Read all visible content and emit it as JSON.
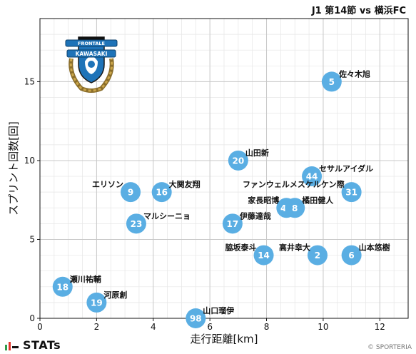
{
  "header": {
    "match_title": "J1 第14節 vs 横浜FC"
  },
  "footer": {
    "brand": "STATs",
    "copyright": "© SPORTERIA"
  },
  "crest": {
    "text_top": "FRONTALE",
    "text_main": "KAWASAKI"
  },
  "colors": {
    "point": "#5aaee3",
    "grid": "#c8c8c8",
    "text": "#111111"
  },
  "chart_data": {
    "type": "scatter",
    "xlabel": "走行距離[km]",
    "ylabel": "スプリント回数[回]",
    "xlim": [
      0,
      13
    ],
    "ylim": [
      0,
      19
    ],
    "xticks": [
      0,
      2,
      4,
      6,
      8,
      10,
      12
    ],
    "yticks": [
      0,
      5,
      10,
      15
    ],
    "grid": true,
    "points": [
      {
        "number": "5",
        "name": "佐々木旭",
        "x": 10.3,
        "y": 15,
        "label_side": "right"
      },
      {
        "number": "20",
        "name": "山田新",
        "x": 7.0,
        "y": 10,
        "label_side": "right"
      },
      {
        "number": "44",
        "name": "セサルアイダル",
        "x": 9.6,
        "y": 9,
        "label_side": "right"
      },
      {
        "number": "9",
        "name": "エリソン",
        "x": 3.2,
        "y": 8,
        "label_side": "left"
      },
      {
        "number": "16",
        "name": "大関友翔",
        "x": 4.3,
        "y": 8,
        "label_side": "right"
      },
      {
        "number": "31",
        "name": "ファンウェルメスケルケン際",
        "x": 11.0,
        "y": 8,
        "label_side": "left"
      },
      {
        "number": "41",
        "name": "家長昭博",
        "x": 8.7,
        "y": 7,
        "label_side": "left"
      },
      {
        "number": "8",
        "name": "橘田健人",
        "x": 9.0,
        "y": 7,
        "label_side": "right"
      },
      {
        "number": "23",
        "name": "マルシーニョ",
        "x": 3.4,
        "y": 6,
        "label_side": "right"
      },
      {
        "number": "17",
        "name": "伊藤達哉",
        "x": 6.8,
        "y": 6,
        "label_side": "right"
      },
      {
        "number": "14",
        "name": "脇坂泰斗",
        "x": 7.9,
        "y": 4,
        "label_side": "left"
      },
      {
        "number": "2",
        "name": "高井幸大",
        "x": 9.8,
        "y": 4,
        "label_side": "left"
      },
      {
        "number": "6",
        "name": "山本悠樹",
        "x": 11.0,
        "y": 4,
        "label_side": "right"
      },
      {
        "number": "18",
        "name": "瀬川祐輔",
        "x": 0.8,
        "y": 2,
        "label_side": "right"
      },
      {
        "number": "19",
        "name": "河原創",
        "x": 2.0,
        "y": 1,
        "label_side": "right"
      },
      {
        "number": "98",
        "name": "山口瑠伊",
        "x": 5.5,
        "y": 0,
        "label_side": "right"
      }
    ]
  }
}
